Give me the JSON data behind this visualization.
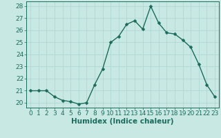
{
  "xlabel": "Humidex (Indice chaleur)",
  "ylabel": "",
  "x": [
    0,
    1,
    2,
    3,
    4,
    5,
    6,
    7,
    8,
    9,
    10,
    11,
    12,
    13,
    14,
    15,
    16,
    17,
    18,
    19,
    20,
    21,
    22,
    23
  ],
  "y": [
    21.0,
    21.0,
    21.0,
    20.5,
    20.2,
    20.1,
    19.9,
    20.0,
    21.5,
    22.8,
    25.0,
    25.5,
    26.5,
    26.8,
    26.1,
    28.0,
    26.6,
    25.8,
    25.7,
    25.2,
    24.6,
    23.2,
    21.5,
    20.5
  ],
  "line_color": "#1a6b5a",
  "marker": "D",
  "marker_size": 2.5,
  "bg_color": "#c8e8e4",
  "grid_color": "#b0d8d4",
  "tick_color": "#1a6b5a",
  "label_color": "#1a6b5a",
  "ylim": [
    19.6,
    28.4
  ],
  "yticks": [
    20,
    21,
    22,
    23,
    24,
    25,
    26,
    27,
    28
  ],
  "xticks": [
    0,
    1,
    2,
    3,
    4,
    5,
    6,
    7,
    8,
    9,
    10,
    11,
    12,
    13,
    14,
    15,
    16,
    17,
    18,
    19,
    20,
    21,
    22,
    23
  ],
  "xlabel_fontsize": 7.5,
  "tick_fontsize": 6.5,
  "line_width": 1.0
}
